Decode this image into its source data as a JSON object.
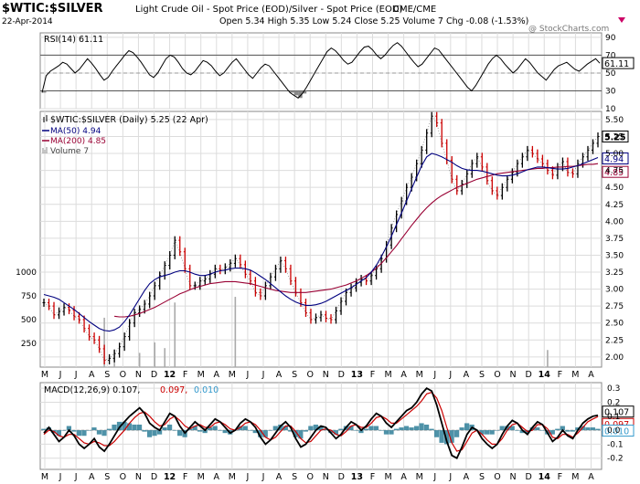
{
  "header": {
    "symbol": "$WTIC:$SILVER",
    "description": "Light Crude Oil - Spot Price (EOD)/Silver - Spot Price (EOD)",
    "exchange": "CME/CME",
    "date": "22-Apr-2014",
    "ohlc": "Open 5.34  High 5.35  Low 5.24  Close 5.25  Volume 7  Chg -0.08 (-1.53%)",
    "watermark": "@ StockCharts.com",
    "change_marker_color": "#cc0066"
  },
  "x_axis_labels": [
    "M",
    "J",
    "J",
    "A",
    "S",
    "O",
    "N",
    "D",
    "12",
    "F",
    "M",
    "A",
    "M",
    "J",
    "J",
    "A",
    "S",
    "O",
    "N",
    "D",
    "13",
    "F",
    "M",
    "A",
    "M",
    "J",
    "J",
    "A",
    "S",
    "O",
    "N",
    "D",
    "14",
    "F",
    "M",
    "A"
  ],
  "chart_data": [
    {
      "type": "line",
      "panel": "rsi",
      "legend": "RSI(14) 61.11",
      "ylim": [
        10,
        95
      ],
      "y_ticks": [
        "90",
        "70",
        "50",
        "30",
        "10"
      ],
      "reference_lines": [
        70,
        30
      ],
      "current_value": "61.11",
      "series": [
        {
          "name": "RSI(14)",
          "color": "#000000",
          "values": [
            28,
            47,
            52,
            55,
            58,
            62,
            60,
            55,
            50,
            54,
            60,
            66,
            61,
            55,
            48,
            42,
            45,
            52,
            58,
            64,
            70,
            75,
            73,
            68,
            62,
            55,
            48,
            45,
            50,
            58,
            66,
            70,
            68,
            62,
            55,
            50,
            48,
            52,
            58,
            64,
            62,
            58,
            52,
            47,
            50,
            56,
            62,
            66,
            60,
            54,
            48,
            44,
            50,
            56,
            60,
            58,
            52,
            46,
            40,
            34,
            28,
            25,
            22,
            27,
            34,
            42,
            50,
            58,
            66,
            74,
            78,
            75,
            70,
            64,
            60,
            62,
            68,
            74,
            79,
            80,
            76,
            70,
            66,
            70,
            76,
            81,
            84,
            80,
            74,
            68,
            62,
            57,
            60,
            66,
            72,
            78,
            76,
            70,
            64,
            58,
            52,
            46,
            40,
            34,
            30,
            36,
            44,
            52,
            60,
            66,
            70,
            66,
            60,
            55,
            50,
            54,
            60,
            66,
            62,
            56,
            50,
            46,
            42,
            48,
            54,
            58,
            60,
            62,
            58,
            54,
            52,
            56,
            60,
            63,
            66,
            61
          ]
        }
      ]
    },
    {
      "type": "line",
      "panel": "price",
      "legend": [
        {
          "label": "$WTIC:$SILVER (Daily) 5.25 (22 Apr)",
          "color": "#000000"
        },
        {
          "label": "MA(50) 4.94",
          "color": "#00007f"
        },
        {
          "label": "MA(200) 4.85",
          "color": "#990033"
        },
        {
          "label": "Volume 7",
          "color": "#888888"
        }
      ],
      "ylim": [
        1.85,
        5.62
      ],
      "y_ticks": [
        "5.50",
        "5.25",
        "5.00",
        "4.75",
        "4.50",
        "4.25",
        "4.00",
        "3.75",
        "3.50",
        "3.25",
        "3.00",
        "2.75",
        "2.50",
        "2.25",
        "2.00"
      ],
      "volume_ticks": [
        "1000",
        "750",
        "500",
        "250"
      ],
      "current_labels": [
        "5.25",
        "4.94",
        "4.85"
      ],
      "price": [
        2.8,
        2.75,
        2.62,
        2.67,
        2.73,
        2.69,
        2.6,
        2.55,
        2.42,
        2.3,
        2.25,
        2.12,
        1.95,
        1.98,
        2.05,
        2.15,
        2.3,
        2.5,
        2.65,
        2.7,
        2.78,
        2.9,
        3.05,
        3.2,
        3.35,
        3.5,
        3.72,
        3.55,
        3.3,
        3.05,
        3.05,
        3.12,
        3.15,
        3.22,
        3.3,
        3.28,
        3.32,
        3.38,
        3.45,
        3.36,
        3.22,
        3.12,
        2.95,
        2.9,
        3.05,
        3.18,
        3.3,
        3.42,
        3.3,
        3.12,
        2.95,
        2.8,
        2.65,
        2.55,
        2.58,
        2.62,
        2.57,
        2.55,
        2.68,
        2.82,
        2.95,
        3.02,
        3.1,
        3.15,
        3.12,
        3.2,
        3.3,
        3.45,
        3.65,
        3.9,
        4.1,
        4.3,
        4.5,
        4.65,
        4.85,
        5.05,
        5.3,
        5.55,
        5.45,
        5.15,
        4.9,
        4.62,
        4.45,
        4.55,
        4.7,
        4.85,
        4.95,
        4.8,
        4.6,
        4.45,
        4.38,
        4.5,
        4.62,
        4.72,
        4.85,
        4.95,
        5.05,
        5.0,
        4.92,
        4.85,
        4.75,
        4.68,
        4.8,
        4.88,
        4.72,
        4.7,
        4.85,
        4.95,
        5.05,
        5.15,
        5.25
      ],
      "ma50": [
        2.92,
        2.9,
        2.88,
        2.85,
        2.8,
        2.75,
        2.7,
        2.64,
        2.58,
        2.52,
        2.47,
        2.42,
        2.39,
        2.38,
        2.4,
        2.44,
        2.52,
        2.62,
        2.74,
        2.86,
        2.98,
        3.08,
        3.14,
        3.18,
        3.2,
        3.22,
        3.25,
        3.27,
        3.27,
        3.25,
        3.22,
        3.2,
        3.2,
        3.22,
        3.25,
        3.27,
        3.28,
        3.3,
        3.31,
        3.31,
        3.3,
        3.28,
        3.24,
        3.19,
        3.14,
        3.08,
        3.02,
        2.96,
        2.9,
        2.85,
        2.81,
        2.78,
        2.76,
        2.76,
        2.77,
        2.79,
        2.82,
        2.86,
        2.9,
        2.94,
        2.98,
        3.02,
        3.07,
        3.12,
        3.17,
        3.25,
        3.35,
        3.48,
        3.62,
        3.78,
        3.95,
        4.12,
        4.3,
        4.48,
        4.65,
        4.82,
        4.95,
        5.0,
        4.98,
        4.95,
        4.91,
        4.87,
        4.82,
        4.78,
        4.76,
        4.75,
        4.75,
        4.74,
        4.72,
        4.7,
        4.68,
        4.67,
        4.67,
        4.68,
        4.7,
        4.73,
        4.76,
        4.78,
        4.8,
        4.8,
        4.79,
        4.78,
        4.77,
        4.77,
        4.78,
        4.8,
        4.82,
        4.85,
        4.88,
        4.91,
        4.94
      ],
      "ma200": [
        null,
        null,
        null,
        null,
        null,
        null,
        null,
        null,
        null,
        null,
        null,
        null,
        null,
        null,
        2.6,
        2.59,
        2.59,
        2.6,
        2.62,
        2.64,
        2.67,
        2.7,
        2.73,
        2.77,
        2.81,
        2.85,
        2.89,
        2.93,
        2.96,
        2.99,
        3.02,
        3.04,
        3.06,
        3.08,
        3.09,
        3.1,
        3.11,
        3.11,
        3.11,
        3.1,
        3.09,
        3.08,
        3.06,
        3.04,
        3.02,
        3.0,
        2.98,
        2.97,
        2.96,
        2.95,
        2.95,
        2.95,
        2.95,
        2.96,
        2.97,
        2.98,
        2.99,
        3.0,
        3.02,
        3.04,
        3.06,
        3.09,
        3.12,
        3.16,
        3.2,
        3.25,
        3.31,
        3.38,
        3.46,
        3.55,
        3.64,
        3.74,
        3.84,
        3.94,
        4.03,
        4.12,
        4.2,
        4.27,
        4.33,
        4.38,
        4.42,
        4.46,
        4.5,
        4.53,
        4.56,
        4.59,
        4.62,
        4.64,
        4.66,
        4.68,
        4.7,
        4.71,
        4.72,
        4.73,
        4.74,
        4.75,
        4.76,
        4.77,
        4.78,
        4.78,
        4.79,
        4.79,
        4.8,
        4.8,
        4.81,
        4.81,
        4.82,
        4.83,
        4.84,
        4.84,
        4.85
      ],
      "volume_spikes": [
        {
          "i": 12,
          "v": 520
        },
        {
          "i": 14,
          "v": 180
        },
        {
          "i": 19,
          "v": 150
        },
        {
          "i": 22,
          "v": 260
        },
        {
          "i": 24,
          "v": 200
        },
        {
          "i": 26,
          "v": 680
        },
        {
          "i": 38,
          "v": 740
        },
        {
          "i": 100,
          "v": 180
        }
      ]
    },
    {
      "type": "line",
      "panel": "macd",
      "legend": [
        {
          "label": "MACD(12,26,9) 0.107,",
          "color": "#000000"
        },
        {
          "label": "0.097,",
          "color": "#cc0000"
        },
        {
          "label": "0.010",
          "color": "#3399cc"
        }
      ],
      "ylim": [
        -0.28,
        0.34
      ],
      "y_ticks": [
        "0.3",
        "0.2",
        "0.1",
        "0.0",
        "-0.1",
        "-0.2"
      ],
      "current_labels": [
        "0.107",
        "0.097",
        "0.010"
      ],
      "series": [
        {
          "name": "MACD",
          "color": "#000000",
          "values": [
            -0.02,
            0.02,
            -0.03,
            -0.08,
            -0.05,
            0.0,
            -0.04,
            -0.1,
            -0.13,
            -0.1,
            -0.06,
            -0.12,
            -0.15,
            -0.1,
            -0.04,
            0.02,
            0.06,
            0.1,
            0.13,
            0.16,
            0.12,
            0.05,
            0.02,
            0.0,
            0.06,
            0.12,
            0.1,
            0.03,
            -0.02,
            0.02,
            0.06,
            0.03,
            0.0,
            0.04,
            0.08,
            0.06,
            0.02,
            -0.02,
            0.0,
            0.05,
            0.08,
            0.06,
            0.02,
            -0.05,
            -0.1,
            -0.07,
            -0.02,
            0.03,
            0.06,
            0.02,
            -0.06,
            -0.12,
            -0.1,
            -0.05,
            0.0,
            0.03,
            0.02,
            -0.02,
            -0.06,
            -0.03,
            0.02,
            0.06,
            0.04,
            0.0,
            0.03,
            0.08,
            0.12,
            0.1,
            0.05,
            0.02,
            0.06,
            0.1,
            0.14,
            0.16,
            0.2,
            0.26,
            0.3,
            0.28,
            0.18,
            0.05,
            -0.08,
            -0.18,
            -0.2,
            -0.12,
            -0.03,
            0.02,
            0.0,
            -0.06,
            -0.1,
            -0.13,
            -0.1,
            -0.03,
            0.03,
            0.07,
            0.05,
            0.0,
            -0.03,
            0.02,
            0.06,
            0.04,
            -0.02,
            -0.08,
            -0.05,
            0.0,
            -0.04,
            -0.06,
            0.0,
            0.05,
            0.08,
            0.1,
            0.107
          ]
        },
        {
          "name": "Signal",
          "color": "#cc0000",
          "values": [
            -0.03,
            0.0,
            -0.01,
            -0.04,
            -0.05,
            -0.03,
            -0.03,
            -0.06,
            -0.09,
            -0.1,
            -0.08,
            -0.09,
            -0.11,
            -0.11,
            -0.08,
            -0.04,
            0.0,
            0.05,
            0.09,
            0.12,
            0.13,
            0.1,
            0.06,
            0.03,
            0.04,
            0.08,
            0.1,
            0.07,
            0.03,
            0.01,
            0.03,
            0.04,
            0.02,
            0.02,
            0.05,
            0.06,
            0.04,
            0.01,
            0.0,
            0.02,
            0.05,
            0.06,
            0.04,
            0.0,
            -0.05,
            -0.07,
            -0.05,
            -0.01,
            0.03,
            0.03,
            -0.01,
            -0.06,
            -0.09,
            -0.08,
            -0.04,
            0.0,
            0.01,
            0.0,
            -0.03,
            -0.04,
            -0.01,
            0.03,
            0.04,
            0.02,
            0.02,
            0.05,
            0.09,
            0.1,
            0.08,
            0.05,
            0.05,
            0.08,
            0.11,
            0.14,
            0.17,
            0.21,
            0.26,
            0.27,
            0.23,
            0.14,
            0.02,
            -0.09,
            -0.15,
            -0.14,
            -0.08,
            -0.02,
            0.0,
            -0.03,
            -0.07,
            -0.1,
            -0.1,
            -0.06,
            0.0,
            0.04,
            0.05,
            0.02,
            -0.01,
            0.0,
            0.04,
            0.04,
            0.01,
            -0.05,
            -0.06,
            -0.03,
            -0.03,
            -0.05,
            -0.02,
            0.02,
            0.06,
            0.08,
            0.097
          ]
        }
      ],
      "histogram": [
        0.01,
        0.02,
        -0.02,
        -0.04,
        0.0,
        0.03,
        -0.01,
        -0.04,
        -0.04,
        0.0,
        0.02,
        -0.03,
        -0.04,
        0.01,
        0.04,
        0.06,
        0.06,
        0.05,
        0.04,
        0.04,
        -0.01,
        -0.05,
        -0.04,
        -0.03,
        0.02,
        0.04,
        0.0,
        -0.04,
        -0.05,
        0.01,
        0.03,
        -0.01,
        -0.02,
        0.02,
        0.03,
        0.0,
        -0.02,
        -0.03,
        0.0,
        0.03,
        0.03,
        0.0,
        -0.02,
        -0.05,
        -0.05,
        0.0,
        0.03,
        0.04,
        0.03,
        -0.01,
        -0.05,
        -0.06,
        -0.01,
        0.03,
        0.04,
        0.03,
        0.01,
        -0.02,
        -0.03,
        0.01,
        0.03,
        0.03,
        0.0,
        -0.02,
        0.01,
        0.03,
        0.03,
        0.0,
        -0.03,
        -0.03,
        0.01,
        0.02,
        0.03,
        0.02,
        0.03,
        0.05,
        0.04,
        0.01,
        -0.05,
        -0.09,
        -0.1,
        -0.09,
        -0.05,
        0.02,
        0.05,
        0.04,
        0.0,
        -0.03,
        -0.03,
        -0.03,
        0.0,
        0.03,
        0.03,
        0.03,
        0.0,
        -0.02,
        -0.02,
        0.02,
        0.02,
        0.0,
        -0.03,
        -0.03,
        0.01,
        0.03,
        -0.01,
        -0.01,
        0.02,
        0.03,
        0.02,
        0.02,
        0.01
      ]
    }
  ]
}
